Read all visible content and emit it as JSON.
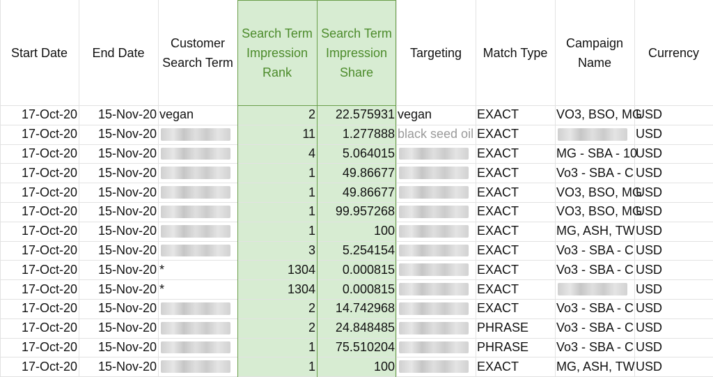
{
  "headers": {
    "start_date": "Start Date",
    "end_date": "End Date",
    "customer_search_term": [
      "Customer",
      "Search Term"
    ],
    "impression_rank": [
      "Search Term",
      "Impression",
      "Rank"
    ],
    "impression_share": [
      "Search Term",
      "Impression",
      "Share"
    ],
    "targeting": "Targeting",
    "match_type": "Match Type",
    "campaign_name": [
      "Campaign",
      "Name"
    ],
    "currency": "Currency"
  },
  "colors": {
    "highlight_fill": "#d7ecd2",
    "highlight_header_text": "#4c8b2b",
    "highlight_border": "#6a9e4a"
  },
  "rows": [
    {
      "start": "17-Oct-20",
      "end": "15-Nov-20",
      "term": "vegan",
      "rank": "2",
      "share": "22.575931",
      "targeting": "vegan",
      "match": "EXACT",
      "campaign": "VO3, BSO, MG",
      "currency": "USD"
    },
    {
      "start": "17-Oct-20",
      "end": "15-Nov-20",
      "term": "",
      "rank": "11",
      "share": "1.277888",
      "targeting": "black seed oil",
      "match": "EXACT",
      "campaign": "",
      "currency": "USD"
    },
    {
      "start": "17-Oct-20",
      "end": "15-Nov-20",
      "term": "",
      "rank": "4",
      "share": "5.064015",
      "targeting": "",
      "match": "EXACT",
      "campaign": "MG - SBA - 10",
      "currency": "USD"
    },
    {
      "start": "17-Oct-20",
      "end": "15-Nov-20",
      "term": "",
      "rank": "1",
      "share": "49.86677",
      "targeting": "",
      "match": "EXACT",
      "campaign": "Vo3 - SBA - C",
      "currency": "USD"
    },
    {
      "start": "17-Oct-20",
      "end": "15-Nov-20",
      "term": "",
      "rank": "1",
      "share": "49.86677",
      "targeting": "",
      "match": "EXACT",
      "campaign": "VO3, BSO, MG",
      "currency": "USD"
    },
    {
      "start": "17-Oct-20",
      "end": "15-Nov-20",
      "term": "",
      "rank": "1",
      "share": "99.957268",
      "targeting": "",
      "match": "EXACT",
      "campaign": "VO3, BSO, MG",
      "currency": "USD"
    },
    {
      "start": "17-Oct-20",
      "end": "15-Nov-20",
      "term": "",
      "rank": "1",
      "share": "100",
      "targeting": "",
      "match": "EXACT",
      "campaign": "MG, ASH, TW",
      "currency": "USD"
    },
    {
      "start": "17-Oct-20",
      "end": "15-Nov-20",
      "term": "",
      "rank": "3",
      "share": "5.254154",
      "targeting": "",
      "match": "EXACT",
      "campaign": "Vo3 - SBA - C",
      "currency": "USD"
    },
    {
      "start": "17-Oct-20",
      "end": "15-Nov-20",
      "term": "*",
      "rank": "1304",
      "share": "0.000815",
      "targeting": "",
      "match": "EXACT",
      "campaign": "Vo3 - SBA - C",
      "currency": "USD"
    },
    {
      "start": "17-Oct-20",
      "end": "15-Nov-20",
      "term": "*",
      "rank": "1304",
      "share": "0.000815",
      "targeting": "",
      "match": "EXACT",
      "campaign": "",
      "currency": "USD"
    },
    {
      "start": "17-Oct-20",
      "end": "15-Nov-20",
      "term": "",
      "rank": "2",
      "share": "14.742968",
      "targeting": "",
      "match": "EXACT",
      "campaign": "Vo3 - SBA - C",
      "currency": "USD"
    },
    {
      "start": "17-Oct-20",
      "end": "15-Nov-20",
      "term": "",
      "rank": "2",
      "share": "24.848485",
      "targeting": "",
      "match": "PHRASE",
      "campaign": "Vo3 - SBA - C",
      "currency": "USD"
    },
    {
      "start": "17-Oct-20",
      "end": "15-Nov-20",
      "term": "",
      "rank": "1",
      "share": "75.510204",
      "targeting": "",
      "match": "PHRASE",
      "campaign": "Vo3 - SBA - C",
      "currency": "USD"
    },
    {
      "start": "17-Oct-20",
      "end": "15-Nov-20",
      "term": "",
      "rank": "1",
      "share": "100",
      "targeting": "",
      "match": "EXACT",
      "campaign": "MG, ASH, TW",
      "currency": "USD"
    }
  ]
}
